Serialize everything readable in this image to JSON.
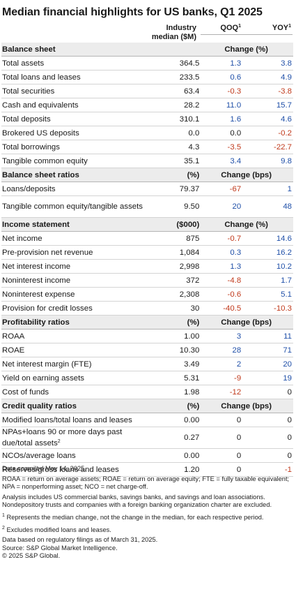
{
  "title": "Median financial highlights for US banks, Q1 2025",
  "columns": {
    "industry_median": "Industry median ($M)",
    "qoq": "QOQ",
    "yoy": "YOY",
    "footnote_marker": "1"
  },
  "rows": [
    {
      "type": "section",
      "label": "Balance sheet",
      "unit": "",
      "change": "Change (%)"
    },
    {
      "type": "row",
      "label": "Total assets",
      "value": "364.5",
      "qoq": "1.3",
      "yoy": "3.8"
    },
    {
      "type": "row",
      "label": "Total loans and leases",
      "value": "233.5",
      "qoq": "0.6",
      "yoy": "4.9"
    },
    {
      "type": "row",
      "label": "Total securities",
      "value": "63.4",
      "qoq": "-0.3",
      "yoy": "-3.8"
    },
    {
      "type": "row",
      "label": "Cash and equivalents",
      "value": "28.2",
      "qoq": "11.0",
      "yoy": "15.7"
    },
    {
      "type": "row",
      "label": "Total deposits",
      "value": "310.1",
      "qoq": "1.6",
      "yoy": "4.6"
    },
    {
      "type": "row",
      "label": "Brokered US deposits",
      "value": "0.0",
      "qoq": "0.0",
      "yoy": "-0.2"
    },
    {
      "type": "row",
      "label": "Total borrowings",
      "value": "4.3",
      "qoq": "-3.5",
      "yoy": "-22.7"
    },
    {
      "type": "row",
      "label": "Tangible common equity",
      "value": "35.1",
      "qoq": "3.4",
      "yoy": "9.8"
    },
    {
      "type": "section",
      "label": "Balance sheet ratios",
      "unit": "(%)",
      "change": "Change (bps)"
    },
    {
      "type": "row",
      "label": "Loans/deposits",
      "value": "79.37",
      "qoq": "-67",
      "yoy": "1"
    },
    {
      "type": "row",
      "tall": true,
      "label": "Tangible common equity/tangible assets",
      "value": "9.50",
      "qoq": "20",
      "yoy": "48"
    },
    {
      "type": "section",
      "label": "Income statement",
      "unit": "($000)",
      "change": "Change (%)"
    },
    {
      "type": "row",
      "label": "Net income",
      "value": "875",
      "qoq": "-0.7",
      "yoy": "14.6"
    },
    {
      "type": "row",
      "label": "Pre-provision net revenue",
      "value": "1,084",
      "qoq": "0.3",
      "yoy": "16.2"
    },
    {
      "type": "row",
      "label": "Net interest income",
      "value": "2,998",
      "qoq": "1.3",
      "yoy": "10.2"
    },
    {
      "type": "row",
      "label": "Noninterest income",
      "value": "372",
      "qoq": "-4.8",
      "yoy": "1.7"
    },
    {
      "type": "row",
      "label": "Noninterest expense",
      "value": "2,308",
      "qoq": "-0.6",
      "yoy": "5.1"
    },
    {
      "type": "row",
      "label": "Provision for credit losses",
      "value": "30",
      "qoq": "-40.5",
      "yoy": "-10.3"
    },
    {
      "type": "section",
      "label": "Profitability ratios",
      "unit": "(%)",
      "change": "Change (bps)"
    },
    {
      "type": "row",
      "label": "ROAA",
      "value": "1.00",
      "qoq": "3",
      "yoy": "11"
    },
    {
      "type": "row",
      "label": "ROAE",
      "value": "10.30",
      "qoq": "28",
      "yoy": "71"
    },
    {
      "type": "row",
      "label": "Net interest margin (FTE)",
      "value": "3.49",
      "qoq": "2",
      "yoy": "20"
    },
    {
      "type": "row",
      "label": "Yield on earning assets",
      "value": "5.31",
      "qoq": "-9",
      "yoy": "19"
    },
    {
      "type": "row",
      "label": "Cost of funds",
      "value": "1.98",
      "qoq": "-12",
      "yoy": "0"
    },
    {
      "type": "section",
      "label": "Credit quality ratios",
      "unit": "(%)",
      "change": "Change (bps)"
    },
    {
      "type": "row",
      "label": "Modified loans/total loans and leases",
      "value": "0.00",
      "qoq": "0",
      "yoy": "0"
    },
    {
      "type": "row",
      "tall": true,
      "label": "NPAs+loans 90 or more days past due/total assets",
      "label_sup": "2",
      "value": "0.27",
      "qoq": "0",
      "yoy": "0"
    },
    {
      "type": "row",
      "label": "NCOs/average loans",
      "value": "0.00",
      "qoq": "0",
      "yoy": "0"
    },
    {
      "type": "row",
      "label": "Reserves/gross loans and leases",
      "value": "1.20",
      "qoq": "0",
      "yoy": "-1"
    }
  ],
  "notes": {
    "compiled": "Data compiled May 14, 2025.",
    "abbreviations": "ROAA = return on average assets; ROAE = return on average equity; FTE = fully taxable equivalent; NPA = nonperforming asset; NCO = net charge-off.",
    "analysis": "Analysis includes US commercial banks, savings banks, and savings and loan associations. Nondepository trusts and companies with a foreign banking organization charter are excluded.",
    "footnote1_marker": "1",
    "footnote1": " Represents the median change, not the change in the median, for each respective period.",
    "footnote2_marker": "2",
    "footnote2": " Excludes modified loans and leases.",
    "data_basis": "Data based on regulatory filings as of March 31, 2025.",
    "source": "Source: S&P Global Market Intelligence.",
    "copyright": "© 2025 S&P Global."
  },
  "colors": {
    "positive": "#1f4fa8",
    "negative": "#c0391b",
    "section_bg": "#ececec"
  }
}
